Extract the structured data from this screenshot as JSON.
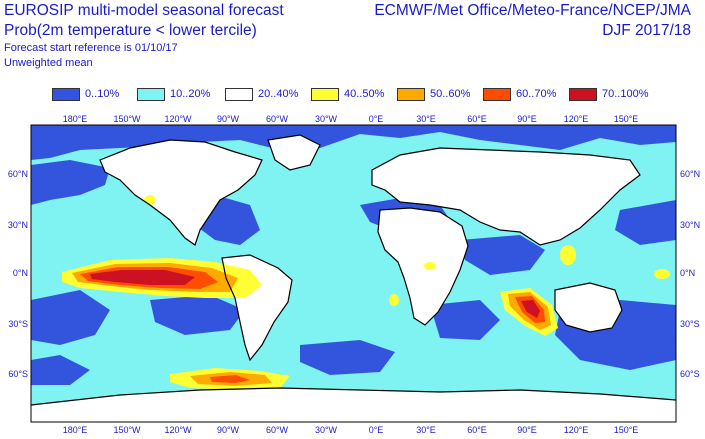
{
  "header": {
    "title_left": "EUROSIP multi-model seasonal forecast",
    "subtitle_left": "Prob(2m temperature < lower tercile)",
    "forecast_ref": "Forecast start reference is 01/10/17",
    "weighting": "Unweighted mean",
    "title_right": "ECMWF/Met Office/Meteo-France/NCEP/JMA",
    "season": "DJF 2017/18"
  },
  "legend": [
    {
      "label": "0..10%",
      "color": "#3355dd"
    },
    {
      "label": "10..20%",
      "color": "#7ff2f2"
    },
    {
      "label": "20..40%",
      "color": "#ffffff"
    },
    {
      "label": "40..50%",
      "color": "#ffff33"
    },
    {
      "label": "50..60%",
      "color": "#ffaa00"
    },
    {
      "label": "60..70%",
      "color": "#ff4d00"
    },
    {
      "label": "70..100%",
      "color": "#cc1122"
    }
  ],
  "axes": {
    "lon_labels": [
      "180°E",
      "150°W",
      "120°W",
      "90°W",
      "60°W",
      "30°W",
      "0°E",
      "30°E",
      "60°E",
      "90°E",
      "120°E",
      "150°E"
    ],
    "lat_labels": [
      "60°N",
      "30°N",
      "0°N",
      "30°S",
      "60°S"
    ]
  },
  "colors": {
    "ocean_default": "#7ff2f2",
    "land": "#ffffff",
    "coast": "#000000"
  }
}
